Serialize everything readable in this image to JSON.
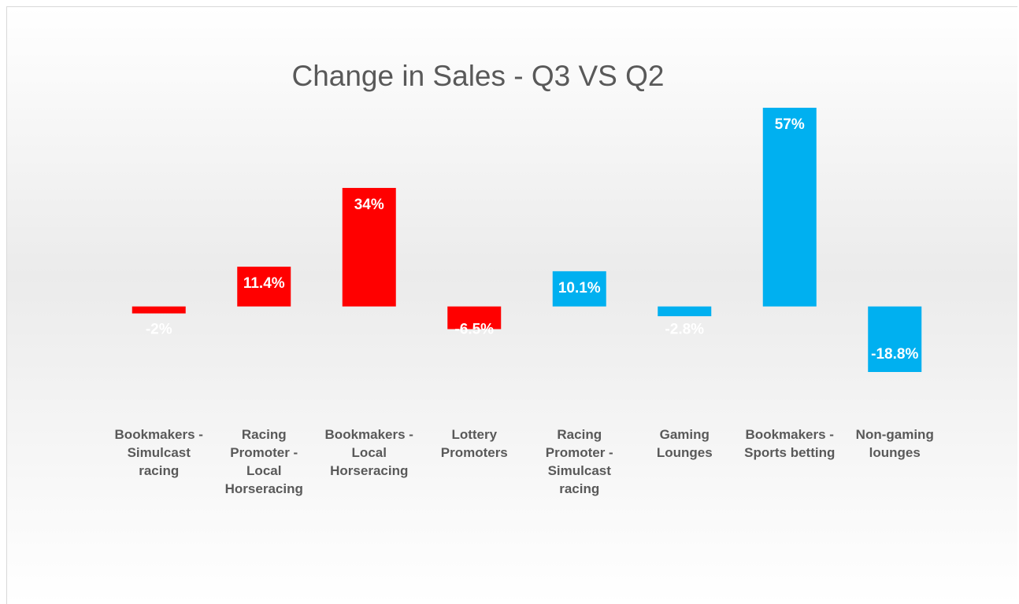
{
  "chart_data": {
    "type": "bar",
    "title": "Change in Sales - Q3 VS Q2",
    "categories": [
      "Bookmakers - Simulcast racing",
      "Racing Promoter - Local Horseracing",
      "Bookmakers - Local Horseracing",
      "Lottery Promoters",
      "Racing Promoter - Simulcast racing",
      "Gaming Lounges",
      "Bookmakers - Sports betting",
      "Non-gaming lounges"
    ],
    "values": [
      -2,
      11.4,
      34,
      -6.5,
      10.1,
      -2.8,
      57,
      -18.8
    ],
    "value_labels": [
      "-2%",
      "11.4%",
      "34%",
      "-6.5%",
      "10.1%",
      "-2.8%",
      "57%",
      "-18.8%"
    ],
    "colors": [
      "#ff0000",
      "#ff0000",
      "#ff0000",
      "#ff0000",
      "#00b0f0",
      "#00b0f0",
      "#00b0f0",
      "#00b0f0"
    ]
  }
}
